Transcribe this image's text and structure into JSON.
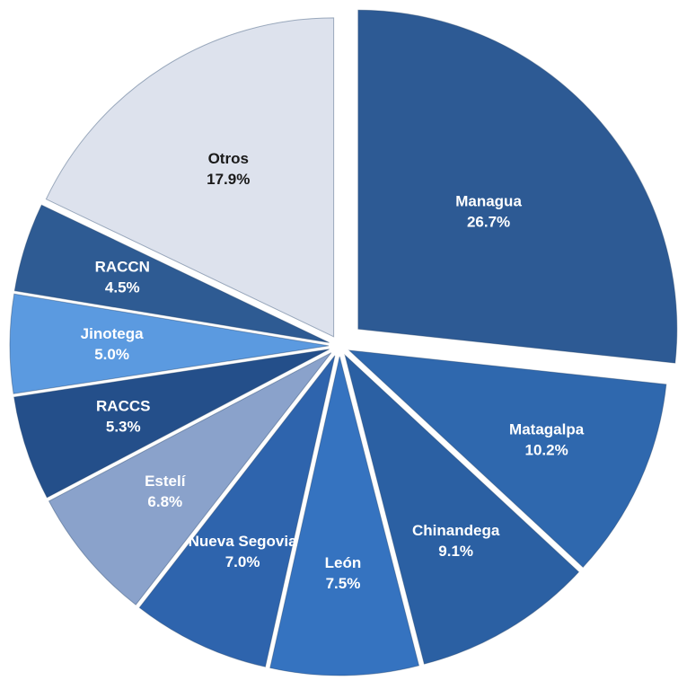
{
  "chart_data": {
    "type": "pie",
    "categories": [
      "Managua",
      "Matagalpa",
      "Chinandega",
      "León",
      "Nueva Segovia",
      "Estelí",
      "RACCS",
      "Jinotega",
      "RACCN",
      "Otros"
    ],
    "values": [
      26.7,
      10.2,
      9.1,
      7.5,
      7.0,
      6.8,
      5.3,
      5.0,
      4.5,
      17.9
    ],
    "value_labels": [
      "26.7%",
      "10.2%",
      "9.1%",
      "7.5%",
      "7.0%",
      "6.8%",
      "5.3%",
      "5.0%",
      "4.5%",
      "17.9%"
    ],
    "colors": [
      "#2d5a94",
      "#2f68ae",
      "#2b60a3",
      "#3573c0",
      "#2e64ad",
      "#8aa2cb",
      "#244f8a",
      "#5b9ae0",
      "#2e5b93",
      "#dde2ed"
    ],
    "label_colors": [
      "#ffffff",
      "#ffffff",
      "#ffffff",
      "#ffffff",
      "#ffffff",
      "#ffffff",
      "#ffffff",
      "#ffffff",
      "#ffffff",
      "#1a1a1a"
    ]
  }
}
